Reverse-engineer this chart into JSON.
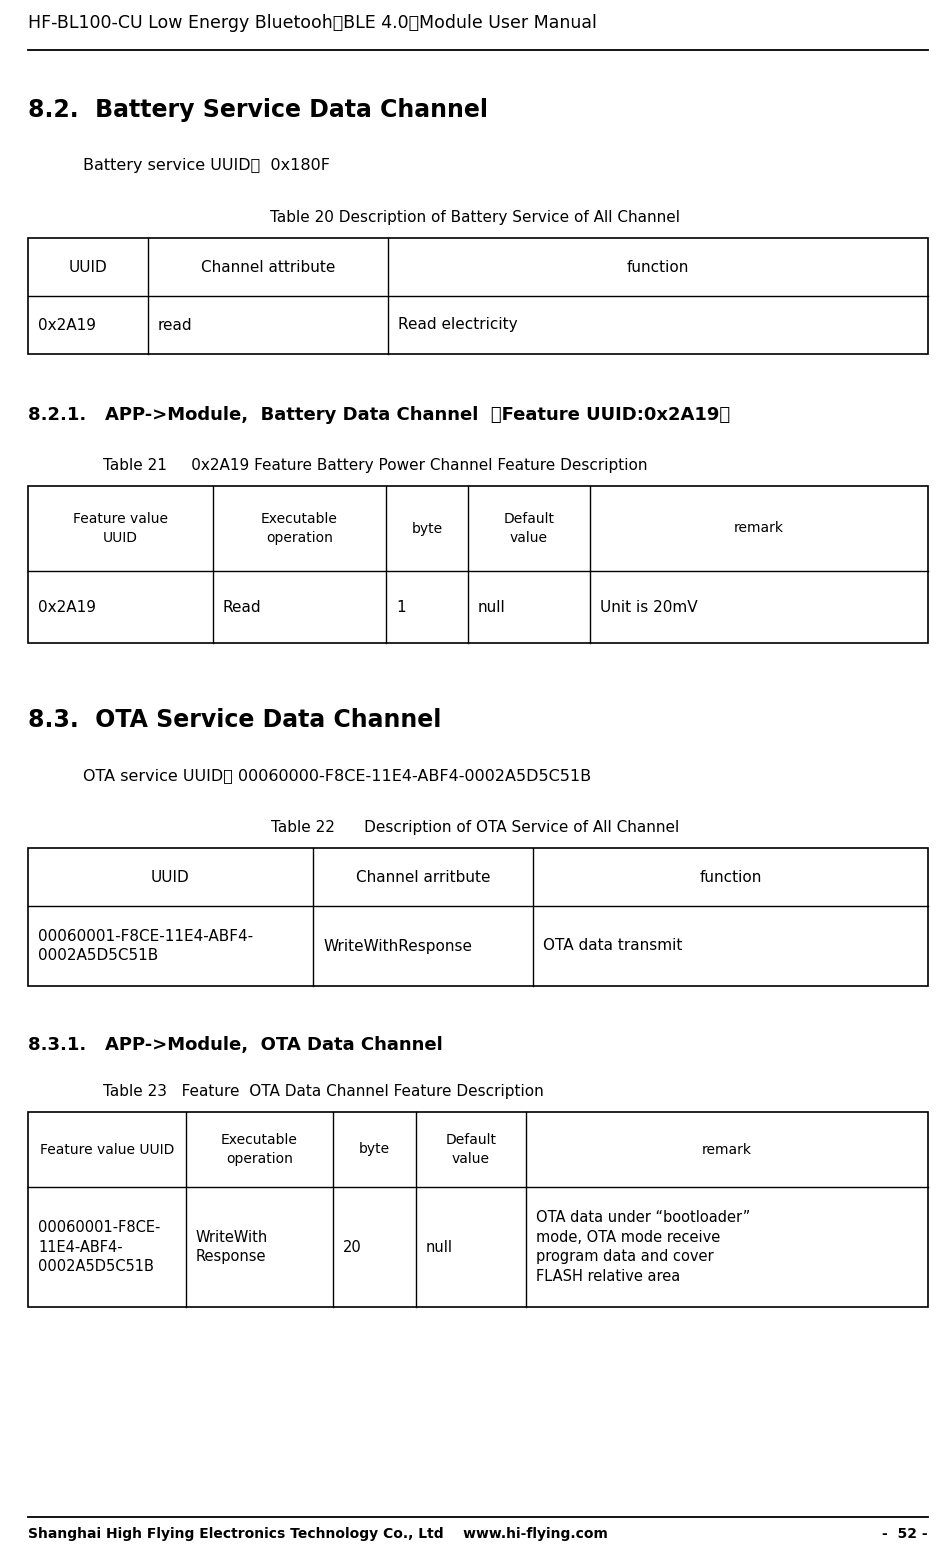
{
  "header_title": "HF-BL100-CU Low Energy Bluetooh（BLE 4.0）Module User Manual",
  "footer_left": "Shanghai High Flying Electronics Technology Co., Ltd    www.hi-flying.com",
  "footer_right": "-  52 -",
  "section_82_title": "8.2.  Battery Service Data Channel",
  "battery_uuid_label": "Battery service UUID：  0x180F",
  "table20_caption": "Table 20 Description of Battery Service of All Channel",
  "table20_headers": [
    "UUID",
    "Channel attribute",
    "function"
  ],
  "table20_data": [
    [
      "0x2A19",
      "read",
      "Read electricity"
    ]
  ],
  "section_821_title": "8.2.1.   APP->Module,  Battery Data Channel  【Feature UUID:0x2A19】",
  "table21_caption": "Table 21     0x2A19 Feature Battery Power Channel Feature Description",
  "table21_data": [
    [
      "0x2A19",
      "Read",
      "1",
      "null",
      "Unit is 20mV"
    ]
  ],
  "section_83_title": "8.3.  OTA Service Data Channel",
  "ota_uuid_label": "OTA service UUID： 00060000-F8CE-11E4-ABF4-0002A5D5C51B",
  "table22_caption": "Table 22      Description of OTA Service of All Channel",
  "table22_headers": [
    "UUID",
    "Channel arritbute",
    "function"
  ],
  "table22_data": [
    [
      "00060001-F8CE-11E4-ABF4-\n0002A5D5C51B",
      "WriteWithResponse",
      "OTA data transmit"
    ]
  ],
  "section_831_title": "8.3.1.   APP->Module,  OTA Data Channel",
  "table23_caption": "Table 23   Feature  OTA Data Channel Feature Description",
  "table23_data": [
    [
      "00060001-F8CE-\n11E4-ABF4-\n0002A5D5C51B",
      "WriteWith\nResponse",
      "20",
      "null",
      "OTA data under “bootloader”\nmode, OTA mode receive\nprogram data and cover\nFLASH relative area"
    ]
  ],
  "bg_color": "#ffffff",
  "text_color": "#000000"
}
